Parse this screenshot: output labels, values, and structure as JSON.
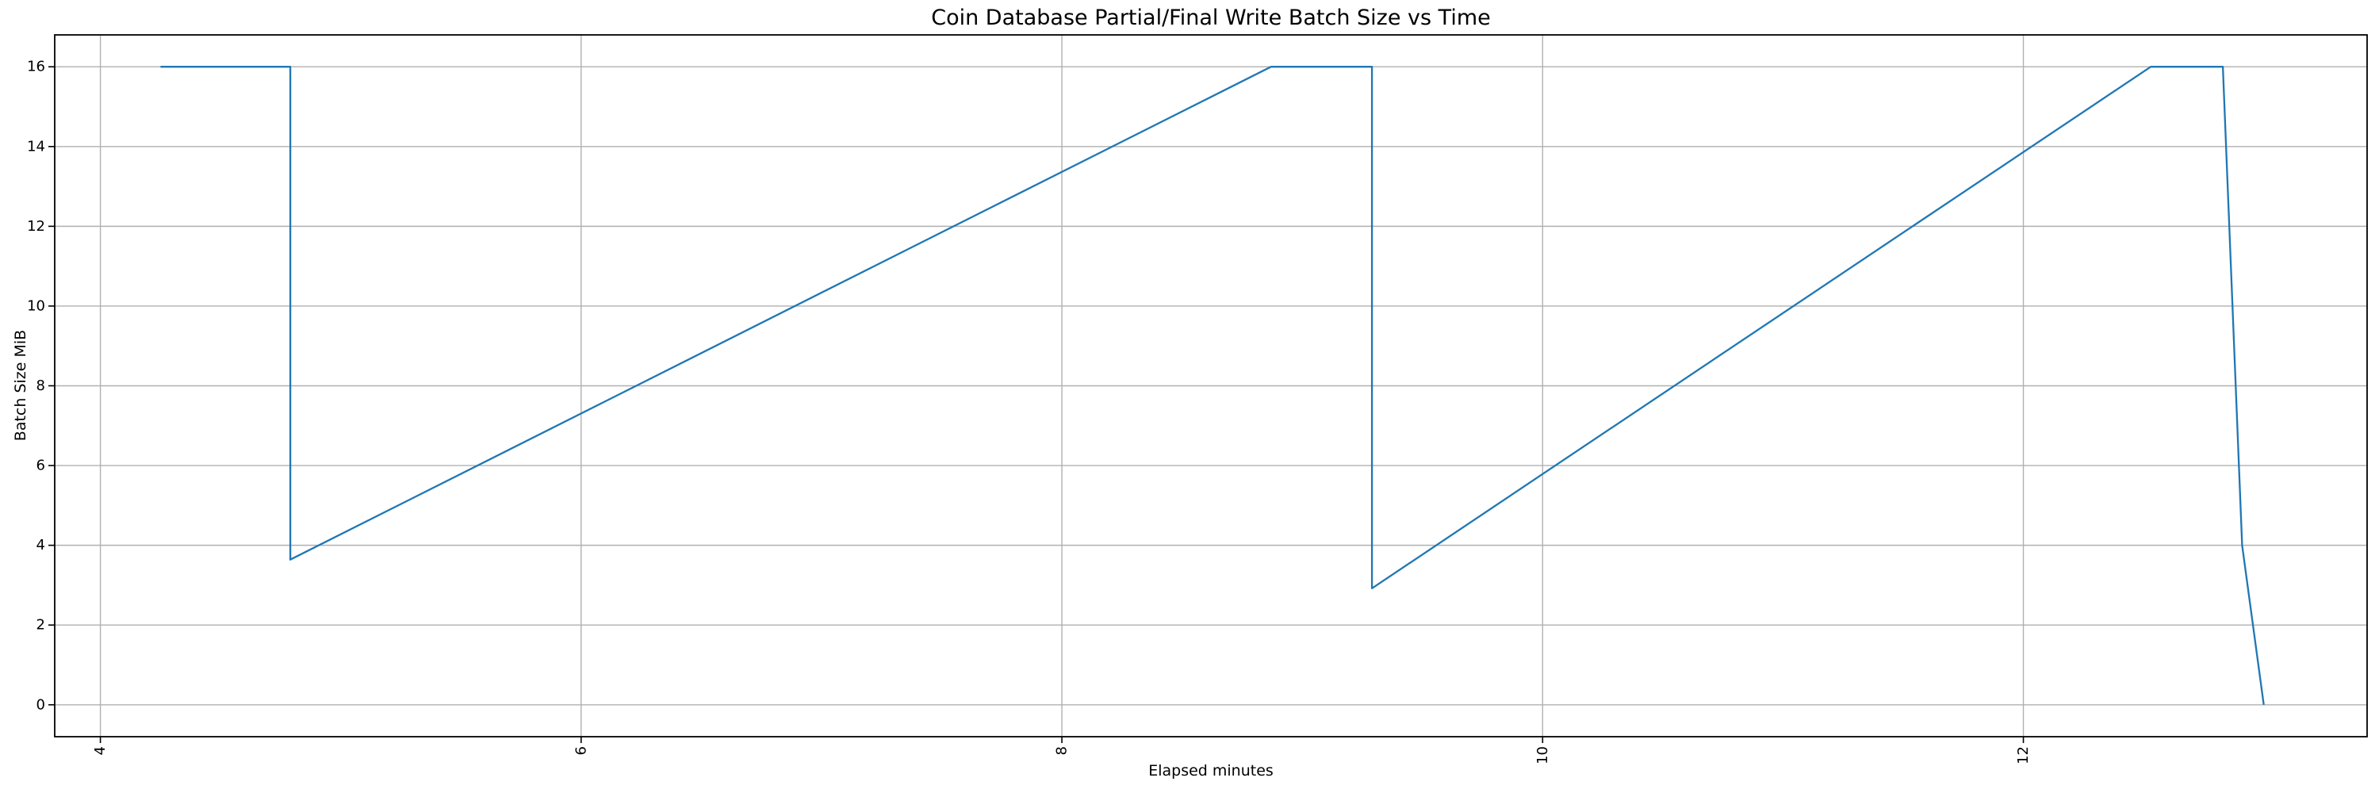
{
  "chart_data": {
    "type": "line",
    "title": "Coin Database Partial/Final Write Batch Size vs Time",
    "xlabel": "Elapsed minutes",
    "ylabel": "Batch Size MiB",
    "xlim": [
      3.81,
      13.43
    ],
    "ylim": [
      -0.8,
      16.8
    ],
    "xticks": [
      4,
      6,
      8,
      10,
      12
    ],
    "yticks": [
      0,
      2,
      4,
      6,
      8,
      10,
      12,
      14,
      16
    ],
    "x_tick_rotation_deg": 90,
    "grid": true,
    "legend": false,
    "line_color": "#1f77b4",
    "grid_color": "#b0b0b0",
    "spine_color": "#000000",
    "series": [
      {
        "name": "batch-size-mib",
        "points": [
          [
            4.25,
            16.0
          ],
          [
            4.79,
            16.0
          ],
          [
            4.79,
            3.64
          ],
          [
            8.87,
            16.0
          ],
          [
            9.29,
            16.0
          ],
          [
            9.29,
            2.92
          ],
          [
            12.53,
            16.0
          ],
          [
            12.83,
            16.0
          ],
          [
            12.91,
            4.0
          ],
          [
            13.0,
            0.0
          ]
        ]
      }
    ]
  }
}
